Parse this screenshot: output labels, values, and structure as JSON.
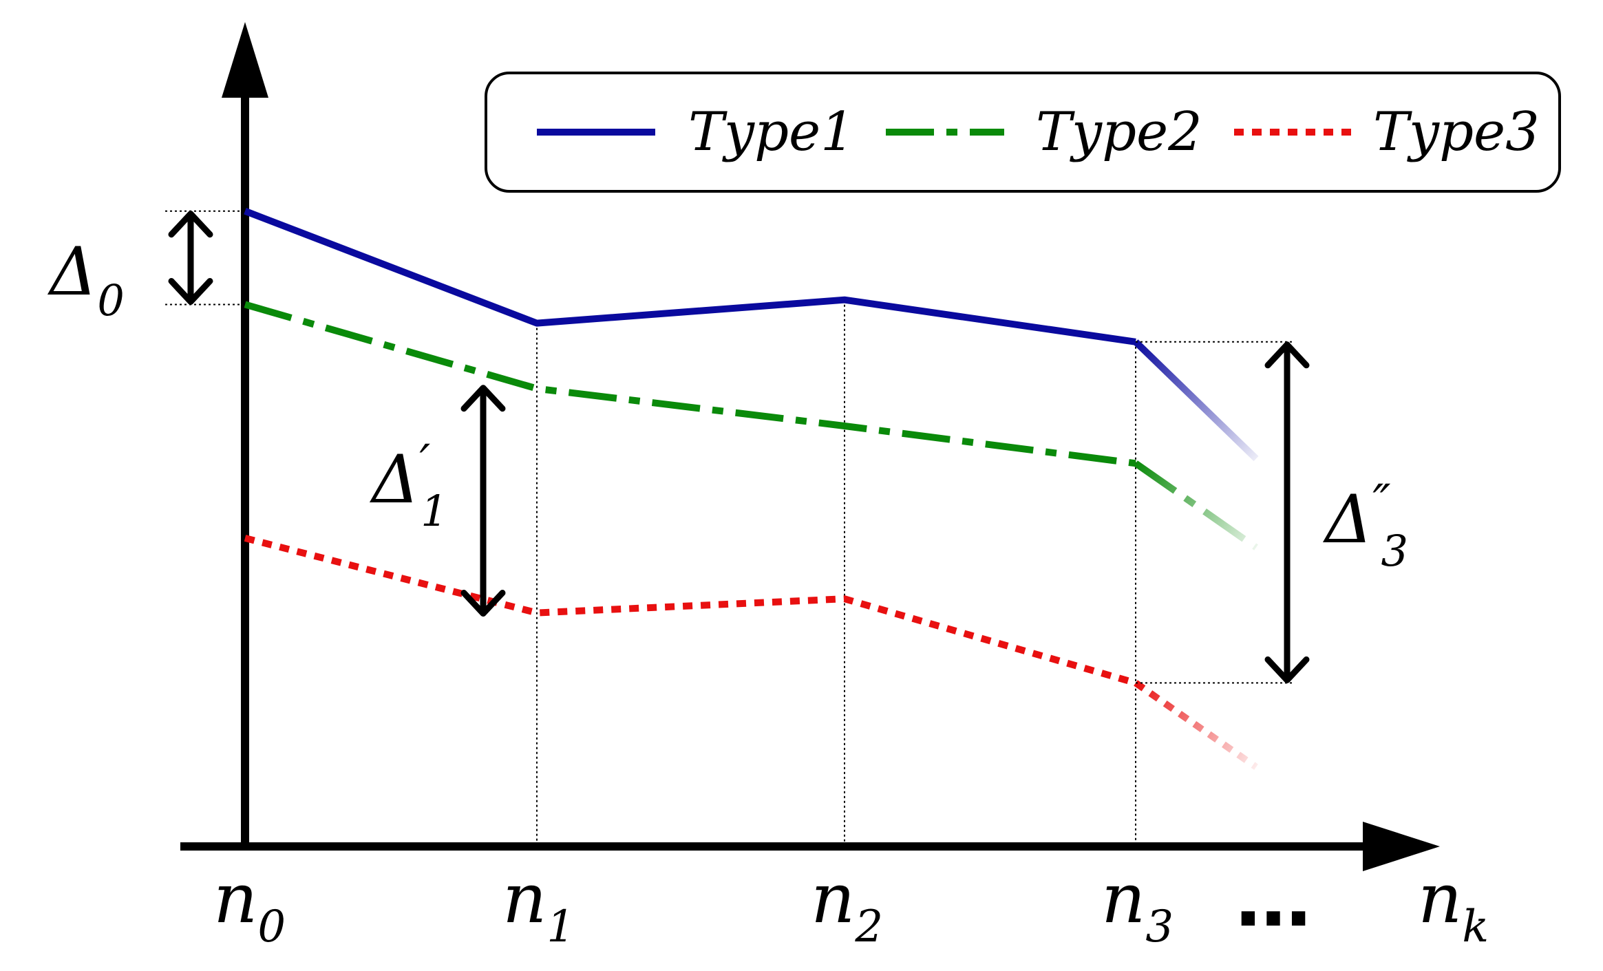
{
  "chart_data": {
    "type": "line",
    "title": "",
    "xlabel": "",
    "ylabel": "",
    "x_ticks": [
      {
        "main": "n",
        "sub": "0"
      },
      {
        "main": "n",
        "sub": "1"
      },
      {
        "main": "n",
        "sub": "2"
      },
      {
        "main": "n",
        "sub": "3"
      },
      {
        "main": "n",
        "sub": "k"
      }
    ],
    "ellipsis": "…",
    "series": [
      {
        "name": "Type1",
        "color": "#0a0a9e",
        "style": "solid",
        "values": [
          6.8,
          5.6,
          5.85,
          5.4
        ],
        "fade": 4.15
      },
      {
        "name": "Type2",
        "color": "#0a8a0a",
        "style": "dashdot",
        "values": [
          5.8,
          4.9,
          4.5,
          4.1
        ],
        "fade": 3.2
      },
      {
        "name": "Type3",
        "color": "#e81010",
        "style": "dotted",
        "values": [
          3.3,
          2.5,
          2.65,
          1.75
        ],
        "fade": 0.85
      }
    ],
    "annotations": [
      {
        "symbol": "Δ",
        "sub": "0",
        "prime": ""
      },
      {
        "symbol": "Δ",
        "sub": "1",
        "prime": "′"
      },
      {
        "symbol": "Δ",
        "sub": "3",
        "prime": "″"
      }
    ],
    "ylim": [
      0,
      9
    ],
    "legend_position": "top-right",
    "grid": false
  }
}
